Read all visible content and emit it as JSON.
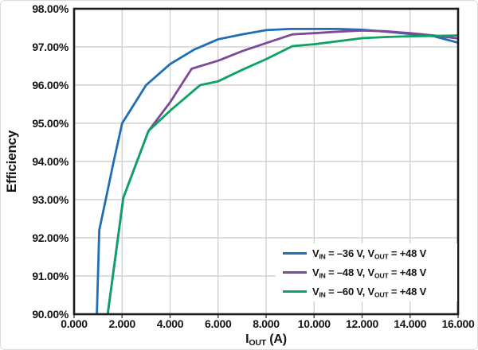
{
  "chart_data": {
    "type": "line",
    "title": "",
    "ylabel": "Efficiency",
    "xlabel": {
      "base": "I",
      "sub": "OUT",
      "suffix": " (A)"
    },
    "xlim": [
      0,
      16
    ],
    "ylim": [
      90,
      98
    ],
    "grid": true,
    "legend_position": "lower right",
    "colors": {
      "grid": "#cbcbcb",
      "frame": "#1c1c1c",
      "text": "#151515",
      "background": "#ffffff"
    },
    "x_ticks": [
      {
        "v": 0,
        "label": "0.000"
      },
      {
        "v": 2,
        "label": "2.000"
      },
      {
        "v": 4,
        "label": "4.000"
      },
      {
        "v": 6,
        "label": "6.000"
      },
      {
        "v": 8,
        "label": "8.000"
      },
      {
        "v": 10,
        "label": "10.000"
      },
      {
        "v": 12,
        "label": "12.000"
      },
      {
        "v": 14,
        "label": "14.000"
      },
      {
        "v": 16,
        "label": "16.000"
      }
    ],
    "y_ticks": [
      {
        "v": 98,
        "label": "98.00%"
      },
      {
        "v": 97,
        "label": "97.00%"
      },
      {
        "v": 96,
        "label": "96.00%"
      },
      {
        "v": 95,
        "label": "95.00%"
      },
      {
        "v": 94,
        "label": "94.00%"
      },
      {
        "v": 93,
        "label": "93.00%"
      },
      {
        "v": 92,
        "label": "92.00%"
      },
      {
        "v": 91,
        "label": "91.00%"
      },
      {
        "v": 90,
        "label": "90.00%"
      }
    ],
    "series": [
      {
        "name": "VIN = -36 V, VOUT = +48 V",
        "color": "#1f6db4",
        "legend": {
          "a": "V",
          "a_sub": "IN",
          "b": " = –36 V, ",
          "c": "V",
          "c_sub": "OUT",
          "d": " = +48 V"
        },
        "points": [
          [
            0.95,
            90.0
          ],
          [
            1.05,
            92.2
          ],
          [
            1.35,
            93.1
          ],
          [
            1.65,
            94.0
          ],
          [
            2,
            95.0
          ],
          [
            3,
            96.0
          ],
          [
            4,
            96.55
          ],
          [
            5,
            96.93
          ],
          [
            6,
            97.2
          ],
          [
            7,
            97.33
          ],
          [
            8,
            97.44
          ],
          [
            9,
            97.47
          ],
          [
            10,
            97.47
          ],
          [
            11,
            97.47
          ],
          [
            12,
            97.45
          ],
          [
            13,
            97.4
          ],
          [
            14,
            97.34
          ],
          [
            15,
            97.28
          ],
          [
            16,
            97.11
          ]
        ]
      },
      {
        "name": "VIN = -48 V, VOUT = +48 V",
        "color": "#7b4b99",
        "legend": {
          "a": "V",
          "a_sub": "IN",
          "b": " = –48 V, ",
          "c": "V",
          "c_sub": "OUT",
          "d": " = +48 V"
        },
        "points": [
          [
            1.4,
            90.0
          ],
          [
            2.05,
            93.05
          ],
          [
            3.1,
            94.8
          ],
          [
            4,
            95.55
          ],
          [
            4.9,
            96.43
          ],
          [
            6,
            96.64
          ],
          [
            7,
            96.89
          ],
          [
            8,
            97.1
          ],
          [
            9.1,
            97.33
          ],
          [
            10,
            97.36
          ],
          [
            11,
            97.4
          ],
          [
            12,
            97.43
          ],
          [
            13,
            97.41
          ],
          [
            14,
            97.36
          ],
          [
            15,
            97.3
          ],
          [
            16,
            97.22
          ]
        ]
      },
      {
        "name": "VIN = -60 V, VOUT = +48 V",
        "color": "#0ba264",
        "legend": {
          "a": "V",
          "a_sub": "IN",
          "b": " = –60 V, ",
          "c": "V",
          "c_sub": "OUT",
          "d": " = +48 V"
        },
        "points": [
          [
            1.4,
            90.0
          ],
          [
            2.05,
            93.05
          ],
          [
            3.1,
            94.8
          ],
          [
            4,
            95.33
          ],
          [
            5.25,
            96.0
          ],
          [
            6,
            96.1
          ],
          [
            7,
            96.4
          ],
          [
            8,
            96.68
          ],
          [
            9.1,
            97.02
          ],
          [
            10,
            97.07
          ],
          [
            11,
            97.15
          ],
          [
            12,
            97.23
          ],
          [
            13,
            97.26
          ],
          [
            14,
            97.28
          ],
          [
            15,
            97.29
          ],
          [
            16,
            97.3
          ]
        ]
      }
    ]
  }
}
